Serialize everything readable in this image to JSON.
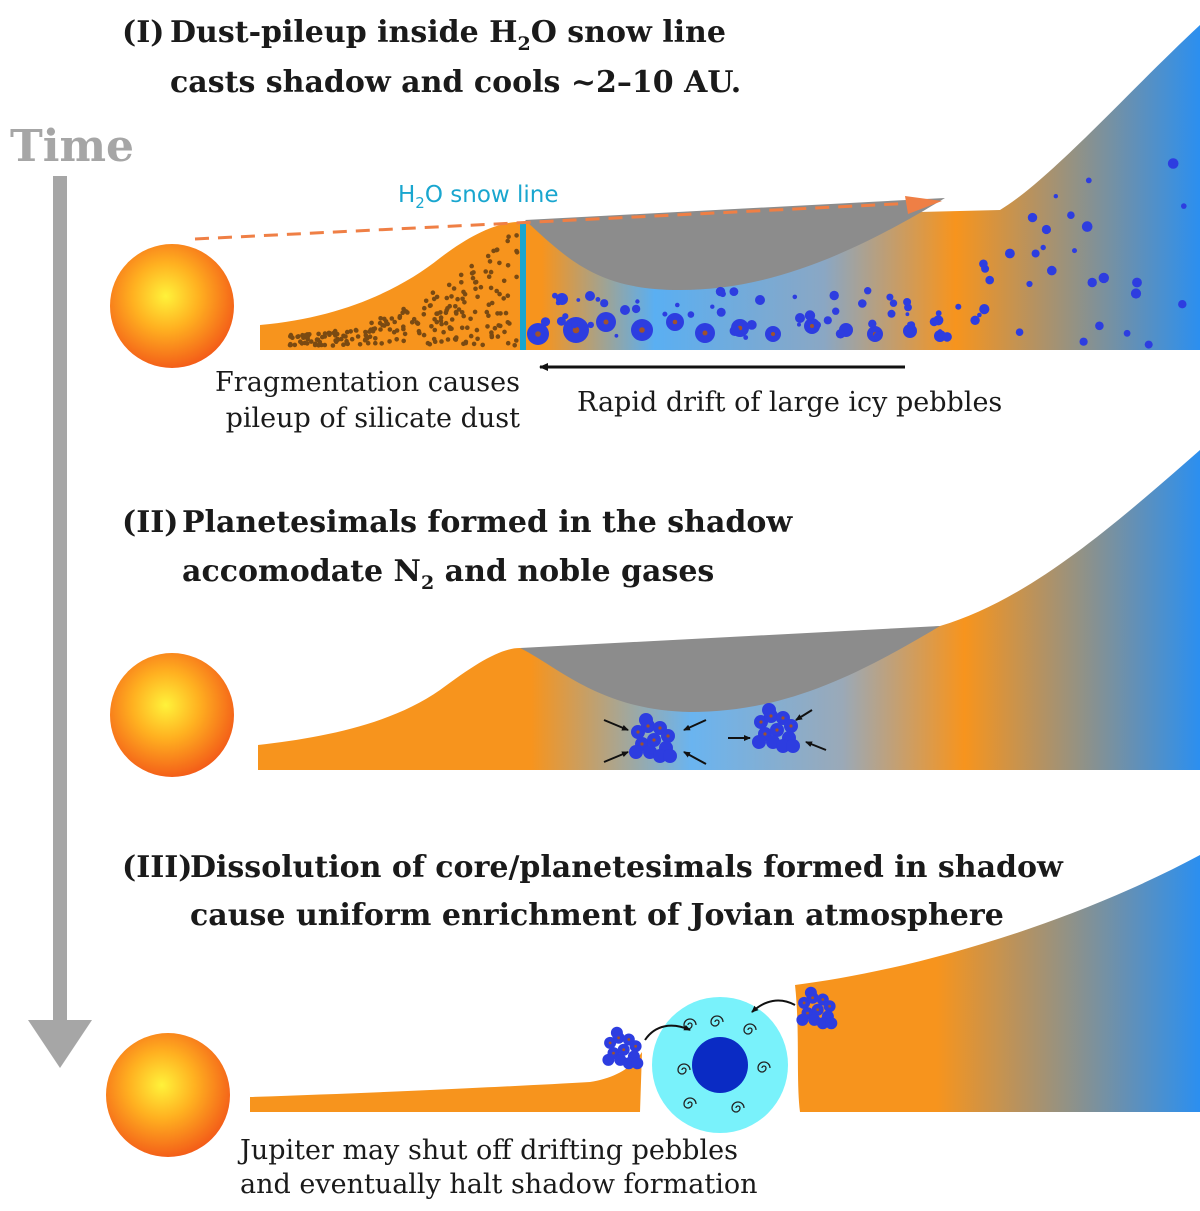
{
  "time_label": "Time",
  "panels": [
    {
      "number": "(I)",
      "title_line1_pre": "Dust-pileup inside H",
      "title_line1_sub": "2",
      "title_line1_post": "O snow line",
      "title_line2": "casts shadow and cools ~2–10 AU.",
      "snow_line_pre": "H",
      "snow_line_sub": "2",
      "snow_line_post": "O snow line",
      "caption_left_line1": "Fragmentation causes",
      "caption_left_line2": "pileup of silicate dust",
      "caption_right": "Rapid drift of large icy pebbles"
    },
    {
      "number": "(II)",
      "title_line1": "Planetesimals formed in the shadow",
      "title_line2_pre": "accomodate N",
      "title_line2_sub": "2",
      "title_line2_post": " and noble gases"
    },
    {
      "number": "(III)",
      "title_line1": "Dissolution of core/planetesimals formed in shadow",
      "title_line2": "cause uniform enrichment of Jovian atmosphere",
      "caption_line1": "Jupiter may shut off drifting pebbles",
      "caption_line2": "and eventually halt shadow formation"
    }
  ],
  "colors": {
    "disk_orange": "#f7941d",
    "disk_blue": "#2b8ff0",
    "shadow_gray": "#8c8c8c",
    "pebble": "#2d3de0",
    "dust": "#7a4a12",
    "snow_line": "#19a6cf",
    "ray": "#ef7f45",
    "jupiter_halo": "#79f2fb",
    "jupiter_core": "#0a2bc4"
  }
}
